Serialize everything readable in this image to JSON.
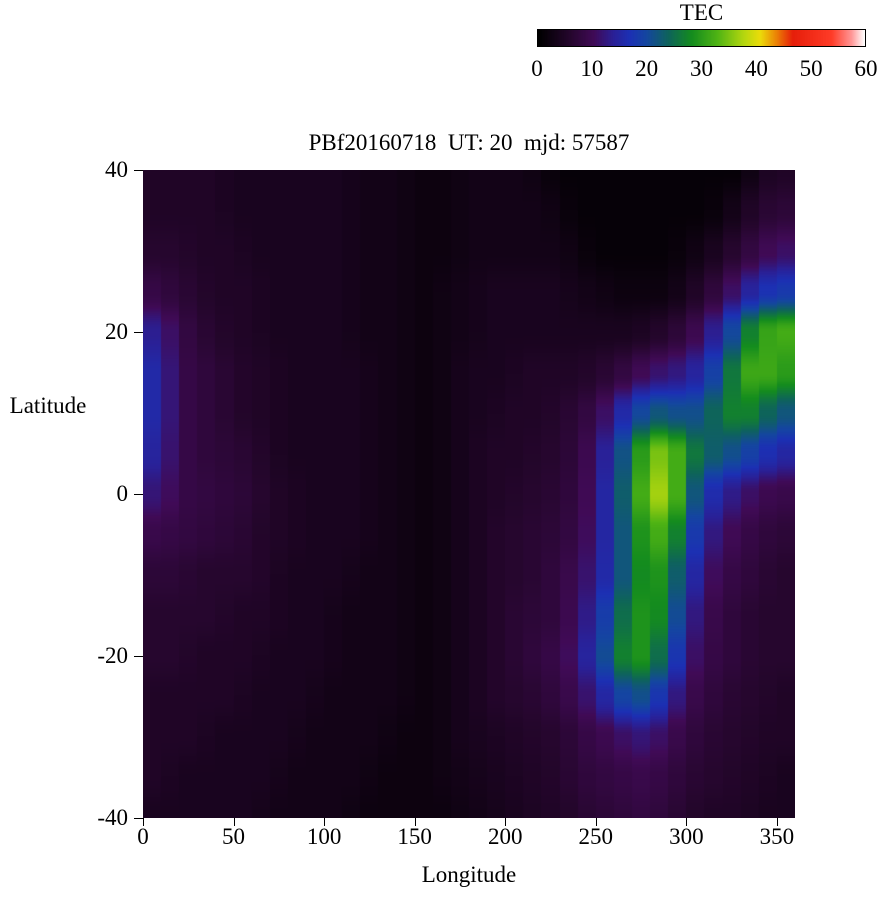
{
  "colorbar": {
    "title": "TEC",
    "ticks": [
      "0",
      "10",
      "20",
      "30",
      "40",
      "50",
      "60"
    ]
  },
  "plot": {
    "title": "PBf20160718  UT: 20  mjd: 57587",
    "xlabel": "Longitude",
    "ylabel": "Latitude",
    "x_ticks": [
      "0",
      "50",
      "100",
      "150",
      "200",
      "250",
      "300",
      "350"
    ],
    "x_tick_values": [
      0,
      50,
      100,
      150,
      200,
      250,
      300,
      350
    ],
    "y_ticks": [
      "40",
      "20",
      "0",
      "-20",
      "-40"
    ],
    "y_tick_values": [
      40,
      20,
      0,
      -20,
      -40
    ]
  },
  "chart_data": {
    "type": "heatmap",
    "title": "PBf20160718  UT: 20  mjd: 57587",
    "xlabel": "Longitude",
    "ylabel": "Latitude",
    "colorbar_label": "TEC",
    "xlim": [
      0,
      360
    ],
    "ylim": [
      -40,
      40
    ],
    "zlim": [
      0,
      60
    ],
    "grid": false,
    "lon": [
      0,
      10,
      20,
      30,
      40,
      50,
      60,
      70,
      80,
      90,
      100,
      110,
      120,
      130,
      140,
      150,
      160,
      170,
      180,
      190,
      200,
      210,
      220,
      230,
      240,
      250,
      260,
      270,
      280,
      290,
      300,
      310,
      320,
      330,
      340,
      350,
      360
    ],
    "lat": [
      40,
      35,
      30,
      25,
      20,
      15,
      10,
      5,
      0,
      -5,
      -10,
      -15,
      -20,
      -25,
      -30,
      -35,
      -40
    ],
    "values": [
      [
        5,
        5,
        5,
        5,
        5,
        4,
        4,
        4,
        4,
        4,
        4,
        4,
        3,
        3,
        3,
        2,
        2,
        2,
        3,
        3,
        3,
        3,
        2,
        1,
        1,
        1,
        1,
        1,
        1,
        1,
        1,
        1,
        1,
        1,
        4,
        5,
        5
      ],
      [
        5,
        5,
        5,
        5,
        5,
        4,
        4,
        4,
        4,
        4,
        4,
        4,
        3,
        3,
        3,
        2,
        2,
        2,
        3,
        3,
        3,
        3,
        3,
        2,
        1,
        1,
        1,
        1,
        1,
        1,
        1,
        1,
        2,
        4,
        6,
        7,
        7
      ],
      [
        6,
        6,
        6,
        5,
        5,
        5,
        4,
        4,
        4,
        4,
        4,
        4,
        3,
        3,
        3,
        2,
        2,
        2,
        3,
        3,
        3,
        3,
        3,
        3,
        2,
        1,
        1,
        1,
        1,
        1,
        2,
        3,
        5,
        7,
        9,
        11,
        11
      ],
      [
        9,
        8,
        7,
        6,
        5,
        5,
        5,
        4,
        4,
        4,
        4,
        4,
        3,
        3,
        3,
        2,
        2,
        3,
        3,
        4,
        4,
        4,
        4,
        4,
        3,
        3,
        2,
        2,
        2,
        2,
        4,
        6,
        9,
        13,
        16,
        18,
        18
      ],
      [
        14,
        13,
        9,
        7,
        6,
        5,
        5,
        4,
        4,
        4,
        4,
        4,
        3,
        3,
        3,
        2,
        2,
        3,
        3,
        4,
        4,
        4,
        4,
        4,
        4,
        4,
        4,
        4,
        5,
        6,
        8,
        11,
        16,
        24,
        30,
        32,
        32
      ],
      [
        16,
        15,
        9,
        8,
        7,
        6,
        5,
        5,
        4,
        4,
        4,
        4,
        4,
        3,
        3,
        2,
        2,
        3,
        4,
        4,
        4,
        5,
        5,
        5,
        5,
        6,
        7,
        9,
        11,
        12,
        13,
        16,
        22,
        30,
        33,
        30,
        30
      ],
      [
        16,
        15,
        9,
        8,
        7,
        6,
        5,
        5,
        4,
        4,
        4,
        4,
        4,
        3,
        3,
        2,
        2,
        3,
        4,
        4,
        5,
        5,
        5,
        6,
        7,
        9,
        13,
        18,
        22,
        22,
        20,
        22,
        26,
        28,
        26,
        22,
        22
      ],
      [
        15,
        14,
        9,
        8,
        7,
        7,
        6,
        5,
        4,
        4,
        4,
        4,
        4,
        3,
        3,
        2,
        2,
        3,
        4,
        5,
        5,
        5,
        6,
        6,
        8,
        11,
        17,
        26,
        34,
        36,
        28,
        24,
        22,
        20,
        18,
        15,
        15
      ],
      [
        12,
        12,
        9,
        8,
        8,
        7,
        7,
        5,
        5,
        4,
        4,
        4,
        4,
        3,
        3,
        2,
        2,
        3,
        4,
        5,
        5,
        6,
        6,
        7,
        8,
        12,
        18,
        28,
        36,
        38,
        26,
        18,
        14,
        12,
        10,
        9,
        9
      ],
      [
        9,
        9,
        8,
        8,
        7,
        7,
        6,
        5,
        5,
        4,
        4,
        4,
        4,
        3,
        3,
        2,
        2,
        3,
        4,
        5,
        6,
        6,
        7,
        7,
        9,
        12,
        18,
        26,
        32,
        32,
        22,
        14,
        11,
        9,
        8,
        7,
        7
      ],
      [
        7,
        7,
        7,
        6,
        6,
        6,
        6,
        5,
        4,
        4,
        4,
        4,
        3,
        3,
        3,
        2,
        2,
        3,
        4,
        5,
        6,
        6,
        7,
        8,
        10,
        13,
        18,
        26,
        30,
        28,
        18,
        12,
        9,
        8,
        7,
        6,
        6
      ],
      [
        6,
        6,
        6,
        6,
        6,
        5,
        5,
        5,
        4,
        4,
        4,
        3,
        3,
        3,
        3,
        2,
        2,
        3,
        4,
        5,
        6,
        7,
        7,
        8,
        11,
        15,
        22,
        28,
        30,
        26,
        15,
        10,
        8,
        7,
        6,
        6,
        6
      ],
      [
        6,
        6,
        6,
        5,
        5,
        5,
        5,
        4,
        4,
        4,
        4,
        3,
        3,
        3,
        3,
        2,
        2,
        3,
        4,
        5,
        6,
        7,
        8,
        9,
        12,
        17,
        24,
        30,
        28,
        22,
        13,
        9,
        8,
        7,
        6,
        6,
        6
      ],
      [
        5,
        5,
        5,
        5,
        5,
        5,
        4,
        4,
        4,
        4,
        3,
        3,
        3,
        3,
        3,
        2,
        2,
        3,
        4,
        5,
        6,
        6,
        7,
        8,
        10,
        13,
        17,
        22,
        20,
        15,
        10,
        8,
        7,
        6,
        6,
        5,
        5
      ],
      [
        5,
        5,
        5,
        5,
        4,
        4,
        4,
        4,
        4,
        3,
        3,
        3,
        3,
        3,
        2,
        2,
        2,
        3,
        4,
        4,
        5,
        5,
        6,
        6,
        8,
        9,
        10,
        12,
        12,
        10,
        8,
        7,
        6,
        6,
        5,
        5,
        5
      ],
      [
        5,
        5,
        4,
        4,
        4,
        4,
        4,
        4,
        3,
        3,
        3,
        3,
        3,
        2,
        2,
        2,
        2,
        3,
        3,
        4,
        4,
        5,
        5,
        6,
        7,
        8,
        8,
        9,
        9,
        8,
        7,
        6,
        6,
        5,
        5,
        4,
        4
      ],
      [
        4,
        4,
        4,
        4,
        4,
        4,
        4,
        3,
        3,
        3,
        3,
        3,
        2,
        2,
        2,
        2,
        2,
        2,
        3,
        3,
        4,
        4,
        5,
        5,
        6,
        7,
        7,
        8,
        8,
        7,
        6,
        5,
        5,
        5,
        4,
        4,
        4
      ]
    ],
    "palette": [
      [
        0.0,
        "#000000"
      ],
      [
        0.1,
        "#26062e"
      ],
      [
        0.17,
        "#400a56"
      ],
      [
        0.23,
        "#2a2096"
      ],
      [
        0.28,
        "#1c30b4"
      ],
      [
        0.33,
        "#1446a0"
      ],
      [
        0.4,
        "#0e645a"
      ],
      [
        0.47,
        "#148c1e"
      ],
      [
        0.55,
        "#50b414"
      ],
      [
        0.63,
        "#b4d70f"
      ],
      [
        0.68,
        "#ebdc0a"
      ],
      [
        0.73,
        "#eb8205"
      ],
      [
        0.78,
        "#e61e0a"
      ],
      [
        0.9,
        "#ff3c28"
      ],
      [
        0.96,
        "#ff9696"
      ],
      [
        1.0,
        "#ffffff"
      ]
    ],
    "legend_position": "top-right-colorbar"
  }
}
